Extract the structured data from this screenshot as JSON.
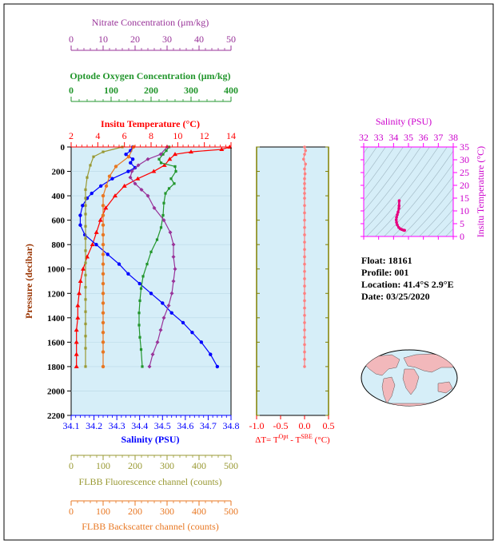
{
  "float_info": {
    "float": "Float:  18161",
    "profile": "Profile:  001",
    "location": "Location:  41.4°S   2.9°E",
    "date": "Date:  03/25/2020"
  },
  "colors": {
    "temperature": "#ff0000",
    "salinity": "#0000ff",
    "oxygen": "#22962c",
    "nitrate": "#993399",
    "fluorescence": "#999933",
    "backscatter": "#e87722",
    "delta_t": "#ff8080",
    "ts_axis": "#ff00ff",
    "plot_bg": "#d6eef8",
    "land": "#f2b8bb",
    "ocean": "#d6eef8"
  },
  "chart_data": [
    {
      "type": "line",
      "panel": "main-profile",
      "ylabel": "Pressure (decibar)",
      "ylim": [
        0,
        2200
      ],
      "y_inverted": true,
      "yticks": [
        "0",
        "200",
        "400",
        "600",
        "800",
        "1000",
        "1200",
        "1400",
        "1600",
        "1800",
        "2000",
        "2200"
      ],
      "axes": [
        {
          "key": "nitrate",
          "label": "Nitrate Concentration (μm/kg)",
          "range": [
            0,
            50
          ],
          "ticks": [
            "0",
            "10",
            "20",
            "30",
            "40",
            "50"
          ],
          "side": "top"
        },
        {
          "key": "oxygen",
          "label": "Optode Oxygen Concentration (μm/kg)",
          "range": [
            0,
            400
          ],
          "ticks": [
            "0",
            "100",
            "200",
            "300",
            "400"
          ],
          "side": "top"
        },
        {
          "key": "temperature",
          "label": "Insitu Temperature (°C)",
          "range": [
            2,
            14
          ],
          "ticks": [
            "2",
            "4",
            "6",
            "8",
            "10",
            "12",
            "14"
          ],
          "side": "top"
        },
        {
          "key": "salinity",
          "label": "Salinity (PSU)",
          "range": [
            34.1,
            34.8
          ],
          "ticks": [
            "34.1",
            "34.2",
            "34.3",
            "34.4",
            "34.5",
            "34.6",
            "34.7",
            "34.8"
          ],
          "side": "bottom"
        },
        {
          "key": "fluorescence",
          "label": "FLBB Fluorescence channel (counts)",
          "range": [
            0,
            500
          ],
          "ticks": [
            "0",
            "100",
            "200",
            "300",
            "400",
            "500"
          ],
          "side": "bottom"
        },
        {
          "key": "backscatter",
          "label": "FLBB Backscatter channel (counts)",
          "range": [
            0,
            500
          ],
          "ticks": [
            "0",
            "100",
            "200",
            "300",
            "400",
            "500"
          ],
          "side": "bottom"
        }
      ],
      "series": [
        {
          "key": "temperature",
          "marker": "triangle",
          "points": [
            [
              13.9,
              0
            ],
            [
              13.3,
              20
            ],
            [
              11,
              40
            ],
            [
              9.8,
              60
            ],
            [
              9.4,
              100
            ],
            [
              9.0,
              150
            ],
            [
              8.2,
              200
            ],
            [
              7.0,
              260
            ],
            [
              6.0,
              320
            ],
            [
              5.3,
              400
            ],
            [
              4.6,
              500
            ],
            [
              4.2,
              600
            ],
            [
              3.9,
              700
            ],
            [
              3.6,
              800
            ],
            [
              3.2,
              900
            ],
            [
              2.9,
              1000
            ],
            [
              2.7,
              1100
            ],
            [
              2.6,
              1200
            ],
            [
              2.5,
              1300
            ],
            [
              2.5,
              1400
            ],
            [
              2.4,
              1500
            ],
            [
              2.4,
              1600
            ],
            [
              2.4,
              1700
            ],
            [
              2.4,
              1800
            ]
          ]
        },
        {
          "key": "salinity",
          "marker": "circle",
          "points": [
            [
              34.37,
              0
            ],
            [
              34.36,
              30
            ],
            [
              34.34,
              60
            ],
            [
              34.37,
              100
            ],
            [
              34.36,
              130
            ],
            [
              34.38,
              170
            ],
            [
              34.35,
              200
            ],
            [
              34.28,
              260
            ],
            [
              34.23,
              320
            ],
            [
              34.19,
              380
            ],
            [
              34.17,
              420
            ],
            [
              34.15,
              480
            ],
            [
              34.14,
              560
            ],
            [
              34.14,
              640
            ],
            [
              34.16,
              720
            ],
            [
              34.21,
              800
            ],
            [
              34.26,
              880
            ],
            [
              34.31,
              960
            ],
            [
              34.35,
              1040
            ],
            [
              34.4,
              1120
            ],
            [
              34.45,
              1200
            ],
            [
              34.5,
              1280
            ],
            [
              34.54,
              1360
            ],
            [
              34.59,
              1440
            ],
            [
              34.63,
              1520
            ],
            [
              34.67,
              1600
            ],
            [
              34.71,
              1700
            ],
            [
              34.74,
              1800
            ]
          ]
        },
        {
          "key": "oxygen",
          "marker": "square",
          "points": [
            [
              245,
              0
            ],
            [
              238,
              30
            ],
            [
              230,
              60
            ],
            [
              220,
              100
            ],
            [
              225,
              130
            ],
            [
              260,
              160
            ],
            [
              262,
              200
            ],
            [
              250,
              260
            ],
            [
              258,
              300
            ],
            [
              245,
              340
            ],
            [
              236,
              380
            ],
            [
              232,
              460
            ],
            [
              230,
              560
            ],
            [
              225,
              660
            ],
            [
              215,
              760
            ],
            [
              200,
              860
            ],
            [
              190,
              960
            ],
            [
              180,
              1060
            ],
            [
              175,
              1160
            ],
            [
              172,
              1260
            ],
            [
              170,
              1360
            ],
            [
              170,
              1460
            ],
            [
              172,
              1560
            ],
            [
              175,
              1660
            ],
            [
              178,
              1800
            ]
          ]
        },
        {
          "key": "nitrate",
          "marker": "diamond",
          "points": [
            [
              30,
              0
            ],
            [
              28,
              60
            ],
            [
              24,
              100
            ],
            [
              21,
              150
            ],
            [
              19,
              200
            ],
            [
              18.5,
              250
            ],
            [
              20,
              300
            ],
            [
              22,
              350
            ],
            [
              24,
              400
            ],
            [
              26,
              500
            ],
            [
              29,
              600
            ],
            [
              31,
              700
            ],
            [
              32,
              800
            ],
            [
              32,
              900
            ],
            [
              32.5,
              1000
            ],
            [
              32,
              1100
            ],
            [
              31.5,
              1200
            ],
            [
              30.5,
              1300
            ],
            [
              29,
              1400
            ],
            [
              28,
              1500
            ],
            [
              27,
              1600
            ],
            [
              25.5,
              1700
            ],
            [
              24.5,
              1800
            ]
          ]
        },
        {
          "key": "fluorescence",
          "marker": "square",
          "points": [
            [
              160,
              0
            ],
            [
              100,
              40
            ],
            [
              70,
              80
            ],
            [
              60,
              150
            ],
            [
              50,
              250
            ],
            [
              45,
              350
            ],
            [
              45,
              420
            ],
            [
              45,
              480
            ],
            [
              45,
              550
            ],
            [
              45,
              650
            ],
            [
              45,
              750
            ],
            [
              45,
              850
            ],
            [
              45,
              950
            ],
            [
              45,
              1050
            ],
            [
              45,
              1150
            ],
            [
              45,
              1250
            ],
            [
              45,
              1350
            ],
            [
              45,
              1450
            ],
            [
              45,
              1550
            ],
            [
              45,
              1650
            ],
            [
              45,
              1800
            ]
          ]
        },
        {
          "key": "backscatter",
          "marker": "circle",
          "points": [
            [
              195,
              0
            ],
            [
              180,
              80
            ],
            [
              140,
              160
            ],
            [
              120,
              240
            ],
            [
              110,
              320
            ],
            [
              100,
              400
            ],
            [
              100,
              480
            ],
            [
              100,
              560
            ],
            [
              100,
              640
            ],
            [
              100,
              720
            ],
            [
              100,
              800
            ],
            [
              100,
              880
            ],
            [
              100,
              960
            ],
            [
              100,
              1040
            ],
            [
              100,
              1120
            ],
            [
              100,
              1200
            ],
            [
              100,
              1280
            ],
            [
              100,
              1360
            ],
            [
              100,
              1440
            ],
            [
              100,
              1520
            ],
            [
              100,
              1600
            ],
            [
              100,
              1680
            ],
            [
              100,
              1800
            ]
          ]
        }
      ]
    },
    {
      "type": "line",
      "panel": "delta-t",
      "xlabel": "ΔT= T",
      "xlabel_sup1": "Opt",
      "xlabel_mid": " - T",
      "xlabel_sup2": "SBE",
      "xlabel_unit": " (°C)",
      "xlim": [
        -1.0,
        0.5
      ],
      "xticks": [
        "-1.0",
        "-0.5",
        "0.0",
        "0.5"
      ],
      "ylim": [
        0,
        2200
      ],
      "series": [
        {
          "key": "delta_t",
          "points": [
            [
              0.0,
              0
            ],
            [
              0.02,
              30
            ],
            [
              0.0,
              60
            ],
            [
              -0.02,
              100
            ],
            [
              0.02,
              140
            ],
            [
              0.0,
              180
            ],
            [
              0.01,
              220
            ],
            [
              0.0,
              260
            ],
            [
              0.0,
              300
            ],
            [
              0.0,
              340
            ],
            [
              0.0,
              380
            ],
            [
              0.0,
              420
            ],
            [
              0.0,
              480
            ],
            [
              0.0,
              540
            ],
            [
              0.0,
              600
            ],
            [
              0.0,
              660
            ],
            [
              0.0,
              720
            ],
            [
              0.0,
              780
            ],
            [
              0.0,
              840
            ],
            [
              0.0,
              900
            ],
            [
              0.0,
              960
            ],
            [
              0.0,
              1020
            ],
            [
              0.0,
              1080
            ],
            [
              0.0,
              1140
            ],
            [
              0.0,
              1200
            ],
            [
              0.0,
              1260
            ],
            [
              0.0,
              1320
            ],
            [
              0.0,
              1380
            ],
            [
              0.0,
              1440
            ],
            [
              0.0,
              1500
            ],
            [
              0.0,
              1560
            ],
            [
              0.0,
              1620
            ],
            [
              0.0,
              1680
            ],
            [
              0.0,
              1740
            ],
            [
              0.0,
              1800
            ]
          ]
        }
      ]
    },
    {
      "type": "scatter",
      "panel": "ts-diagram",
      "xlabel": "Salinity (PSU)",
      "xlim": [
        32,
        38
      ],
      "xticks": [
        "32",
        "33",
        "34",
        "35",
        "36",
        "37",
        "38"
      ],
      "ylabel": "Insitu Temperature (°C)",
      "ylim": [
        0,
        35
      ],
      "yticks": [
        "0",
        "5",
        "10",
        "15",
        "20",
        "25",
        "30",
        "35"
      ],
      "series": [
        {
          "key": "ts",
          "points": [
            [
              34.38,
              14
            ],
            [
              34.37,
              12
            ],
            [
              34.36,
              11
            ],
            [
              34.3,
              9.5
            ],
            [
              34.25,
              8.5
            ],
            [
              34.2,
              7.5
            ],
            [
              34.18,
              6.5
            ],
            [
              34.2,
              5.5
            ],
            [
              34.25,
              4.5
            ],
            [
              34.35,
              3.5
            ],
            [
              34.45,
              3
            ],
            [
              34.55,
              2.7
            ],
            [
              34.65,
              2.5
            ],
            [
              34.72,
              2.4
            ],
            [
              34.74,
              2.4
            ]
          ]
        }
      ]
    }
  ]
}
